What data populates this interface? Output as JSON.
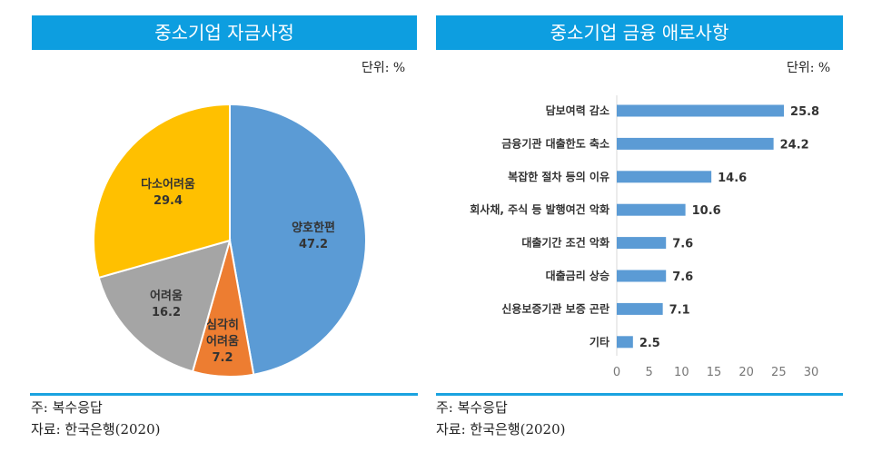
{
  "left": {
    "title": "중소기업 자금사정",
    "unit": "단위: %",
    "note": "주: 복수응답",
    "source": "자료: 한국은행(2020)"
  },
  "right": {
    "title": "중소기업 금융 애로사항",
    "unit": "단위: %",
    "note": "주: 복수응답",
    "source": "자료: 한국은행(2020)"
  },
  "chart_data": [
    {
      "type": "pie",
      "title": "중소기업 자금사정",
      "unit": "%",
      "labels": [
        "양호한편",
        "심각히 어려움",
        "어려움",
        "다소어려움"
      ],
      "values": [
        47.2,
        7.2,
        16.2,
        29.4
      ],
      "colors": [
        "#5b9bd5",
        "#ed7d31",
        "#a5a5a5",
        "#ffc000"
      ]
    },
    {
      "type": "bar",
      "orientation": "horizontal",
      "title": "중소기업 금융 애로사항",
      "unit": "%",
      "categories": [
        "담보여력 감소",
        "금융기관 대출한도 축소",
        "복잡한 절차 등의 이유",
        "회사채, 주식 등 발행여건 악화",
        "대출기간 조건 악화",
        "대출금리 상승",
        "신용보증기관 보증 곤란",
        "기타"
      ],
      "values": [
        25.8,
        24.2,
        14.6,
        10.6,
        7.6,
        7.6,
        7.1,
        2.5
      ],
      "xlim": [
        0,
        30
      ],
      "xticks": [
        0,
        5,
        10,
        15,
        20,
        25,
        30
      ],
      "color": "#5b9bd5"
    }
  ]
}
